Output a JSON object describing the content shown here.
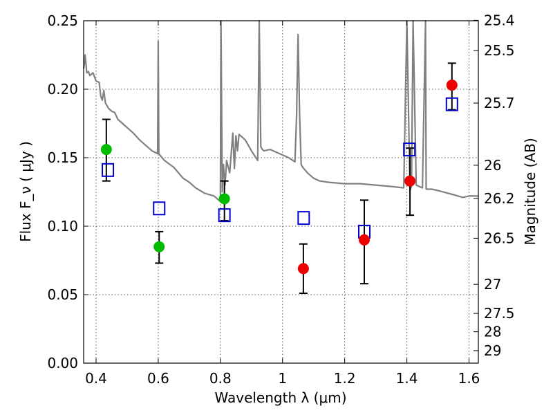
{
  "chart_data": {
    "type": "scatter",
    "xlabel": "Wavelength  λ (μm)",
    "ylabel": "Flux  F_ν  ( μJy )",
    "y2label": "Magnitude (AB)",
    "xlim": [
      0.36,
      1.63
    ],
    "ylim": [
      0.0,
      0.25
    ],
    "grid": true,
    "x_ticks": [
      0.4,
      0.6,
      0.8,
      1.0,
      1.2,
      1.4,
      1.6
    ],
    "x_tick_labels": [
      "0.4",
      "0.6",
      "0.8",
      "1",
      "1.2",
      "1.4",
      "1.6"
    ],
    "y_ticks": [
      0.0,
      0.05,
      0.1,
      0.15,
      0.2,
      0.25
    ],
    "y_tick_labels": [
      "0.00",
      "0.05",
      "0.10",
      "0.15",
      "0.20",
      "0.25"
    ],
    "y2_ticks": [
      {
        "label": "25.4",
        "flux": 0.2503
      },
      {
        "label": "25.5",
        "flux": 0.2283
      },
      {
        "label": "25.7",
        "flux": 0.1899
      },
      {
        "label": "26",
        "flux": 0.1445
      },
      {
        "label": "26.2",
        "flux": 0.1202
      },
      {
        "label": "26.5",
        "flux": 0.0912
      },
      {
        "label": "27",
        "flux": 0.0575
      },
      {
        "label": "27.5",
        "flux": 0.0363
      },
      {
        "label": "28",
        "flux": 0.0229
      },
      {
        "label": "29",
        "flux": 0.0091
      }
    ],
    "colors": {
      "model": "#808080",
      "green": "#00bb00",
      "red": "#ee0000",
      "square": "#0000cc",
      "error": "#000000"
    },
    "series": [
      {
        "name": "model spectrum",
        "kind": "line",
        "x": [
          0.36,
          0.362,
          0.365,
          0.37,
          0.375,
          0.38,
          0.39,
          0.4,
          0.41,
          0.415,
          0.42,
          0.425,
          0.43,
          0.44,
          0.45,
          0.46,
          0.47,
          0.48,
          0.49,
          0.5,
          0.52,
          0.54,
          0.56,
          0.58,
          0.598,
          0.6,
          0.602,
          0.605,
          0.62,
          0.65,
          0.68,
          0.7,
          0.72,
          0.75,
          0.78,
          0.8,
          0.802,
          0.806,
          0.81,
          0.815,
          0.82,
          0.83,
          0.84,
          0.845,
          0.85,
          0.855,
          0.86,
          0.87,
          0.88,
          0.9,
          0.92,
          0.925,
          0.93,
          0.935,
          0.94,
          0.96,
          0.98,
          1.0,
          1.02,
          1.04,
          1.045,
          1.05,
          1.055,
          1.06,
          1.065,
          1.08,
          1.1,
          1.12,
          1.15,
          1.2,
          1.25,
          1.3,
          1.35,
          1.39,
          1.4,
          1.41,
          1.415,
          1.42,
          1.43,
          1.44,
          1.45,
          1.46,
          1.462,
          1.48,
          1.5,
          1.55,
          1.58,
          1.6,
          1.63
        ],
        "y": [
          0.215,
          0.218,
          0.225,
          0.212,
          0.213,
          0.21,
          0.212,
          0.206,
          0.205,
          0.195,
          0.192,
          0.199,
          0.19,
          0.186,
          0.184,
          0.183,
          0.178,
          0.176,
          0.174,
          0.172,
          0.168,
          0.163,
          0.159,
          0.155,
          0.153,
          0.235,
          0.153,
          0.152,
          0.148,
          0.143,
          0.135,
          0.132,
          0.128,
          0.124,
          0.122,
          0.118,
          0.25,
          0.125,
          0.145,
          0.13,
          0.148,
          0.139,
          0.168,
          0.142,
          0.166,
          0.155,
          0.167,
          0.165,
          0.163,
          0.155,
          0.148,
          0.25,
          0.158,
          0.156,
          0.155,
          0.156,
          0.154,
          0.152,
          0.15,
          0.147,
          0.18,
          0.24,
          0.18,
          0.145,
          0.143,
          0.139,
          0.135,
          0.133,
          0.132,
          0.131,
          0.131,
          0.13,
          0.129,
          0.128,
          0.25,
          0.126,
          0.129,
          0.25,
          0.13,
          0.129,
          0.128,
          0.25,
          0.127,
          0.127,
          0.126,
          0.123,
          0.121,
          0.122,
          0.122
        ]
      },
      {
        "name": "green points",
        "kind": "circle",
        "x": [
          0.433,
          0.603,
          0.813
        ],
        "y": [
          0.156,
          0.085,
          0.12
        ],
        "yerr_low": [
          0.133,
          0.073,
          0.104
        ],
        "yerr_high": [
          0.178,
          0.096,
          0.133
        ]
      },
      {
        "name": "red points",
        "kind": "circle",
        "x": [
          1.067,
          1.263,
          1.41,
          1.545
        ],
        "y": [
          0.069,
          0.09,
          0.133,
          0.203
        ],
        "yerr_low": [
          0.051,
          0.058,
          0.108,
          0.185
        ],
        "yerr_high": [
          0.087,
          0.119,
          0.157,
          0.219
        ]
      },
      {
        "name": "model photometry",
        "kind": "square",
        "x": [
          0.438,
          0.603,
          0.813,
          1.068,
          1.263,
          1.408,
          1.545
        ],
        "y": [
          0.141,
          0.113,
          0.108,
          0.106,
          0.096,
          0.156,
          0.189
        ]
      }
    ]
  }
}
